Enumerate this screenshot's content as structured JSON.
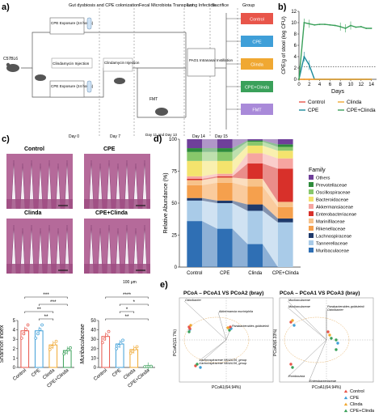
{
  "panels": {
    "a": "a)",
    "b": "b)",
    "c": "c)",
    "d": "d)",
    "e": "e)"
  },
  "panel_a": {
    "header": {
      "gut": "Gut dysbiosis and CPE colonization",
      "fmt": "Fecal Microbiota Transplant",
      "lung": "Lung Infection",
      "sac": "Sacrifice",
      "group": "Group"
    },
    "mouse": "C57BL6",
    "cpe1": "CPE Exposure (24 hours)",
    "clinda_inj": "Clindamycin Injection",
    "cpe2": "CPE Exposure (24 hours)",
    "clinda_inj2": "Clindamycin Injection",
    "fmt": "FMT",
    "pao1": "PAO1 Intranasal Instillation",
    "days": [
      "Day 0",
      "Day 7",
      "Day 11 and Day 13",
      "Day 14",
      "Day 15"
    ],
    "groups": [
      {
        "label": "Control",
        "color": "#e8554a"
      },
      {
        "label": "CPE",
        "color": "#3f9fd8"
      },
      {
        "label": "Clinda",
        "color": "#f0a832"
      },
      {
        "label": "CPE+Clinda",
        "color": "#3aa05a"
      },
      {
        "label": "FMT",
        "color": "#a98ad9"
      }
    ]
  },
  "chart_data": [
    {
      "type": "line",
      "panel": "b",
      "xlabel": "Days",
      "ylabel": "CPE/g of stool (log CFU)",
      "xlim": [
        0,
        15
      ],
      "ylim": [
        0,
        12
      ],
      "x_ticks": [
        0,
        2,
        4,
        6,
        8,
        10,
        12,
        14
      ],
      "y_ticks": [
        0,
        2,
        4,
        6,
        8,
        10,
        12
      ],
      "series": [
        {
          "name": "Control",
          "color": "#e8554a",
          "x": [
            0,
            1,
            2,
            3,
            4,
            5,
            6,
            7,
            8,
            9,
            10,
            11,
            12,
            13,
            14
          ],
          "values": [
            0,
            0,
            0,
            0,
            0,
            0,
            0,
            0,
            0,
            0,
            0,
            0,
            0,
            0,
            0
          ]
        },
        {
          "name": "CPE",
          "color": "#1b8a9a",
          "x": [
            0,
            1,
            2,
            3,
            4,
            5,
            6,
            7,
            8,
            9,
            10,
            11,
            12,
            13,
            14
          ],
          "values": [
            0,
            4,
            2.5,
            0,
            0,
            0,
            0,
            0,
            0,
            0,
            0,
            0,
            0,
            0,
            0
          ]
        },
        {
          "name": "Clinda",
          "color": "#f0a832",
          "x": [
            0,
            1,
            2,
            3,
            4,
            5,
            6,
            7,
            8,
            9,
            10,
            11,
            12,
            13,
            14
          ],
          "values": [
            0,
            0,
            0,
            0,
            0,
            0,
            0,
            0,
            0,
            0,
            0,
            0,
            0,
            0,
            0
          ]
        },
        {
          "name": "CPE+Clinda",
          "color": "#3aa05a",
          "x": [
            0,
            1,
            2,
            3,
            4,
            5,
            6,
            7,
            8,
            9,
            10,
            11,
            12,
            13,
            14
          ],
          "values": [
            0,
            10,
            9.8,
            9.6,
            9.7,
            9.7,
            9.6,
            9.5,
            9.3,
            9.0,
            9.5,
            9.2,
            9.3,
            9.0,
            9.0
          ]
        }
      ],
      "detection_limit": 2.2
    },
    {
      "type": "bar",
      "panel": "d",
      "ylabel": "Relative Abundance (%)",
      "ylim": [
        0,
        100
      ],
      "y_ticks": [
        0,
        25,
        50,
        75,
        100
      ],
      "categories": [
        "Control",
        "CPE",
        "Clinda",
        "CPE+Clinda"
      ],
      "legend_title": "Family",
      "series": [
        {
          "name": "Muribaculaceae",
          "color": "#2f6fb4",
          "values": [
            36,
            30,
            18,
            0
          ]
        },
        {
          "name": "Tannerellaceae",
          "color": "#a9cbe8",
          "values": [
            16,
            20,
            26,
            35
          ]
        },
        {
          "name": "Lachnospiraceae",
          "color": "#1f3a6b",
          "values": [
            2,
            2,
            5,
            3
          ]
        },
        {
          "name": "Rikenellaceae",
          "color": "#f5a04d",
          "values": [
            10,
            14,
            14,
            9
          ]
        },
        {
          "name": "Marinifilaceae",
          "color": "#f7c28a",
          "values": [
            4,
            4,
            6,
            4
          ]
        },
        {
          "name": "Enterobacteriaceae",
          "color": "#d8302a",
          "values": [
            1,
            1,
            12,
            26
          ]
        },
        {
          "name": "Akkermansiaceae",
          "color": "#f6a5a0",
          "values": [
            2,
            2,
            8,
            8
          ]
        },
        {
          "name": "Bacteroidaceae",
          "color": "#f4e36d",
          "values": [
            12,
            10,
            6,
            6
          ]
        },
        {
          "name": "Oscillospiraceae",
          "color": "#88c76b",
          "values": [
            7,
            7,
            3,
            3
          ]
        },
        {
          "name": "Prevotellaceae",
          "color": "#2e8b3b",
          "values": [
            3,
            3,
            1,
            2
          ]
        },
        {
          "name": "Others",
          "color": "#6f3f9a",
          "values": [
            7,
            7,
            1,
            4
          ]
        }
      ]
    },
    {
      "type": "bar",
      "panel": "c-shannon",
      "ylabel": "Shannon index",
      "ylim": [
        0,
        5
      ],
      "y_ticks": [
        0,
        1,
        2,
        3,
        4,
        5
      ],
      "categories": [
        "Control",
        "CPE",
        "Clinda",
        "CPE+Clinda"
      ],
      "values": [
        3.9,
        3.9,
        2.4,
        1.8
      ],
      "colors": [
        "#e8554a",
        "#3f9fd8",
        "#f0a832",
        "#3aa05a"
      ],
      "significance": [
        "***",
        "***",
        "**",
        "**"
      ]
    },
    {
      "type": "bar",
      "panel": "c-muribaculaceae",
      "ylabel": "Muribaculaceae",
      "ylim": [
        0,
        50
      ],
      "y_ticks": [
        0,
        10,
        20,
        30,
        40,
        50
      ],
      "categories": [
        "Control",
        "CPE",
        "Clinda",
        "CPE+Clinda"
      ],
      "values": [
        33,
        25,
        19,
        1
      ],
      "colors": [
        "#e8554a",
        "#3f9fd8",
        "#f0a832",
        "#3aa05a"
      ],
      "significance": [
        "****",
        "*",
        "*",
        "**"
      ]
    }
  ],
  "panel_c": {
    "labels": [
      "Control",
      "CPE",
      "Clinda",
      "CPE+Clinda"
    ],
    "scale": "100 μm"
  },
  "panel_e": {
    "title1": "PCoA – PCoA1 VS PCoA2 (bray)",
    "title2": "PCoA – PCoA1 VS PCoA3 (bray)",
    "x1": "PCoA1(64.94%)",
    "y1": "PCoA2(11.7%)",
    "x2": "PCoA1(64.94%)",
    "y2": "PCoA3(6.33%)",
    "species1": [
      "Odoribacter",
      "Akkermansia muciniphila",
      "Parabacteroides goldsteinii",
      "Lachnospiraceae NK4A136_group",
      "Lachnospiraceae NK4A136_group"
    ],
    "species2": [
      "Muribaculaceae",
      "Muribaculaceae",
      "Parabacteroides goldsteinii",
      "Odoribacter",
      "Romboutsia",
      "Enterobacteriaceae"
    ],
    "legend": [
      {
        "label": "Control",
        "color": "#e8554a"
      },
      {
        "label": "CPE",
        "color": "#3f9fd8"
      },
      {
        "label": "Clinda",
        "color": "#f0a832"
      },
      {
        "label": "CPE+Clinda",
        "color": "#3aa05a"
      }
    ]
  }
}
